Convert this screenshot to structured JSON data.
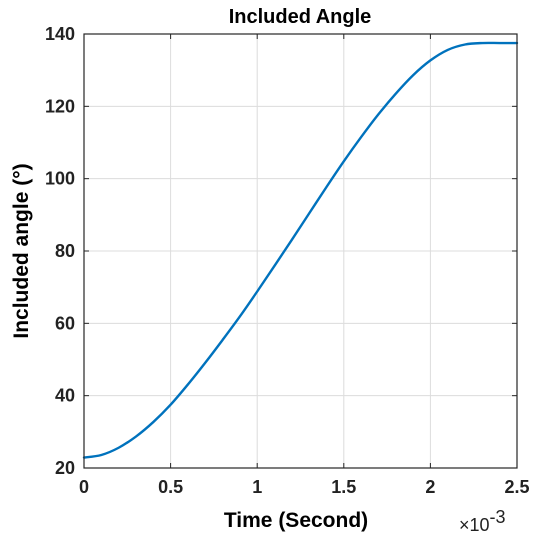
{
  "chart_data": {
    "type": "line",
    "title": "Included Angle",
    "xlabel": "Time (Second)",
    "ylabel": "Included angle (°)",
    "x_exponent_label": "×10",
    "x_exponent_power": "-3",
    "xlim": [
      0,
      2.5
    ],
    "ylim": [
      20,
      140
    ],
    "x_ticks": [
      0,
      0.5,
      1,
      1.5,
      2,
      2.5
    ],
    "x_tick_labels": [
      "0",
      "0.5",
      "1",
      "1.5",
      "2",
      "2.5"
    ],
    "y_ticks": [
      20,
      40,
      60,
      80,
      100,
      120,
      140
    ],
    "y_tick_labels": [
      "20",
      "40",
      "60",
      "80",
      "100",
      "120",
      "140"
    ],
    "grid": true,
    "series": [
      {
        "color": "#0072BD",
        "x": [
          0,
          0.1,
          0.2,
          0.3,
          0.4,
          0.5,
          0.6,
          0.7,
          0.8,
          0.9,
          1.0,
          1.1,
          1.2,
          1.3,
          1.4,
          1.5,
          1.6,
          1.7,
          1.8,
          1.9,
          2.0,
          2.1,
          2.2,
          2.3,
          2.4,
          2.5
        ],
        "values": [
          22.9,
          23.6,
          25.6,
          28.7,
          32.7,
          37.5,
          43.1,
          49.1,
          55.4,
          61.9,
          68.8,
          75.9,
          83.1,
          90.4,
          97.7,
          104.8,
          111.5,
          117.8,
          123.5,
          128.6,
          132.7,
          135.6,
          137.1,
          137.5,
          137.5,
          137.5
        ]
      }
    ]
  }
}
